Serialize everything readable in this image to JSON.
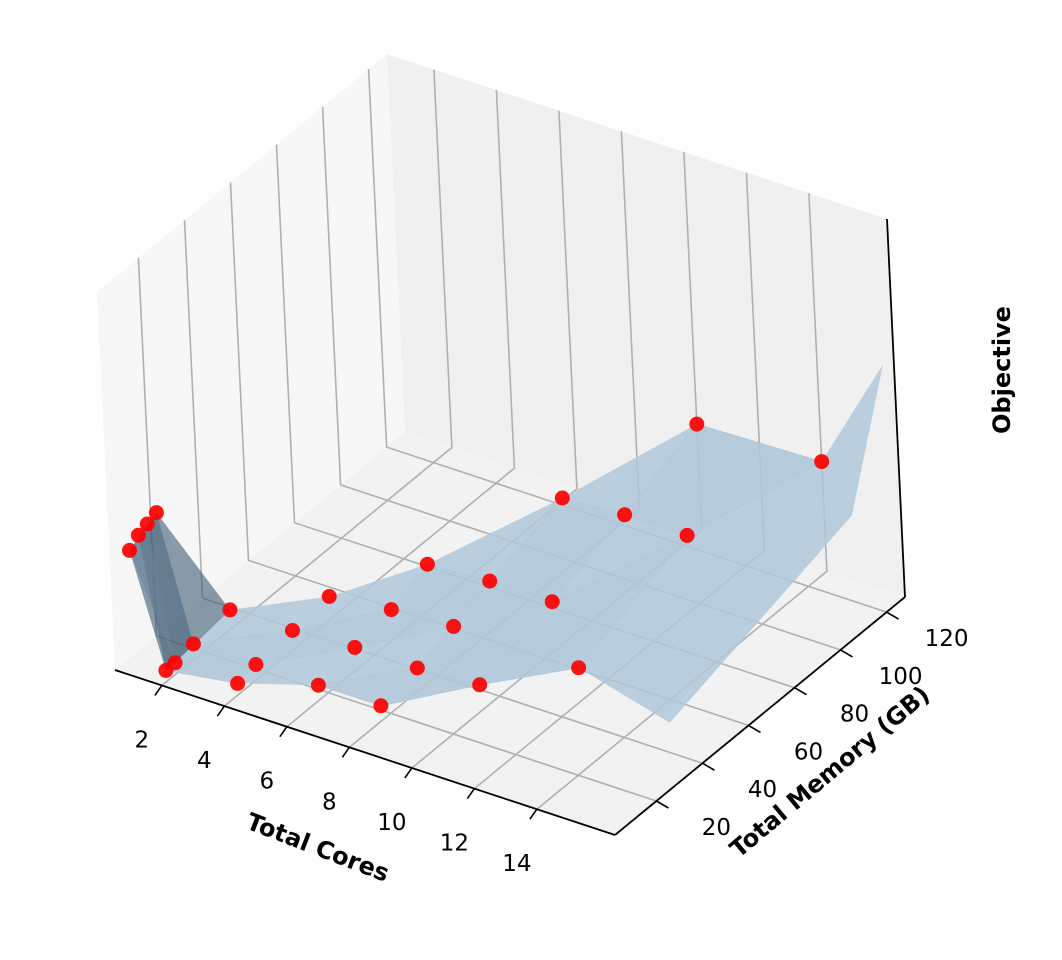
{
  "chart_data": {
    "type": "surface3d-scatter",
    "xlabel": "Total Cores",
    "ylabel": "Total Memory (GB)",
    "zlabel": "Objective",
    "x_ticks": [
      "2",
      "4",
      "6",
      "8",
      "10",
      "12",
      "14"
    ],
    "y_ticks": [
      "20",
      "40",
      "60",
      "80",
      "100",
      "120"
    ],
    "z_ticks": [],
    "xlim": [
      0.5,
      16.5
    ],
    "ylim": [
      2,
      128
    ],
    "zlim": [
      0,
      100
    ],
    "grid": true,
    "colors": {
      "surface": "#b0c8db",
      "surface_dark": "#3d5a73",
      "points": "#ff0000",
      "pane_left": "#f7f7f7",
      "pane_back": "#f0f0f0",
      "pane_floor": "#f2f2f2",
      "grid": "#b0b0b0"
    },
    "points": [
      {
        "x": 1,
        "y": 4,
        "z": 32
      },
      {
        "x": 1,
        "y": 8,
        "z": 34
      },
      {
        "x": 1,
        "y": 12,
        "z": 35
      },
      {
        "x": 1,
        "y": 16,
        "z": 36
      },
      {
        "x": 2,
        "y": 4,
        "z": 3
      },
      {
        "x": 2,
        "y": 8,
        "z": 3
      },
      {
        "x": 2,
        "y": 16,
        "z": 4
      },
      {
        "x": 2,
        "y": 32,
        "z": 5
      },
      {
        "x": 4,
        "y": 8,
        "z": 3
      },
      {
        "x": 4,
        "y": 16,
        "z": 4
      },
      {
        "x": 4,
        "y": 32,
        "z": 5
      },
      {
        "x": 4,
        "y": 48,
        "z": 6
      },
      {
        "x": 6,
        "y": 16,
        "z": 4
      },
      {
        "x": 6,
        "y": 32,
        "z": 6
      },
      {
        "x": 6,
        "y": 48,
        "z": 8
      },
      {
        "x": 6,
        "y": 64,
        "z": 12
      },
      {
        "x": 8,
        "y": 16,
        "z": 4
      },
      {
        "x": 8,
        "y": 32,
        "z": 6
      },
      {
        "x": 8,
        "y": 48,
        "z": 9
      },
      {
        "x": 8,
        "y": 64,
        "z": 13
      },
      {
        "x": 8,
        "y": 96,
        "z": 19
      },
      {
        "x": 10,
        "y": 32,
        "z": 7
      },
      {
        "x": 10,
        "y": 64,
        "z": 13
      },
      {
        "x": 10,
        "y": 96,
        "z": 20
      },
      {
        "x": 10,
        "y": 128,
        "z": 28
      },
      {
        "x": 12,
        "y": 48,
        "z": 9
      },
      {
        "x": 12,
        "y": 96,
        "z": 20
      },
      {
        "x": 14,
        "y": 128,
        "z": 29
      }
    ]
  }
}
